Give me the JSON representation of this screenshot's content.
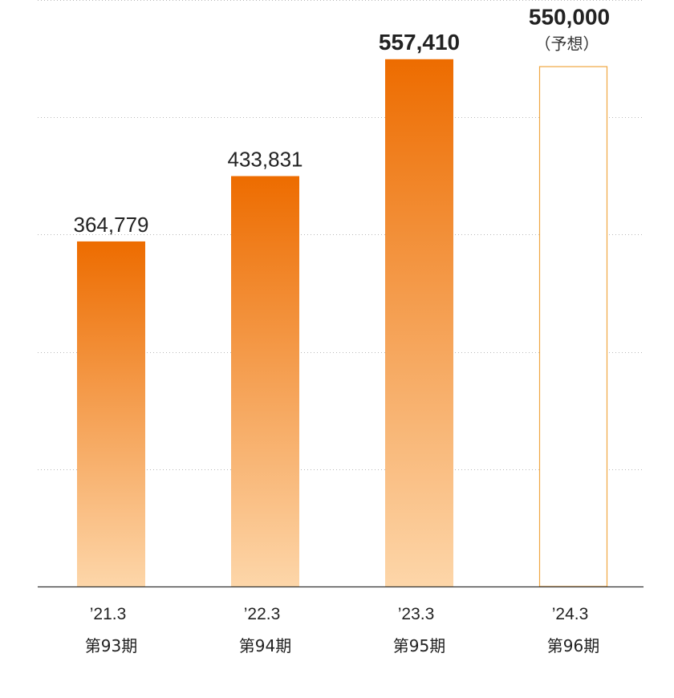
{
  "chart_data": {
    "type": "bar",
    "categories": [
      "’21.3",
      "’22.3",
      "’23.3",
      "’24.3"
    ],
    "sub_categories": [
      "第93期",
      "第94期",
      "第95期",
      "第96期"
    ],
    "values": [
      364779,
      433831,
      557410,
      550000
    ],
    "value_labels": [
      "364,779",
      "433,831",
      "557,410",
      "550,000"
    ],
    "forecast": [
      false,
      false,
      false,
      true
    ],
    "highlight": [
      false,
      false,
      true,
      true
    ],
    "forecast_note": "（予想）",
    "ylim": [
      0,
      620000
    ],
    "grid_step": 124000,
    "grid": true,
    "title": "",
    "xlabel": "",
    "ylabel": "",
    "colors": {
      "bar_top": "#ed6c00",
      "bar_bottom": "#fdd6a9",
      "forecast_border": "#f0a640",
      "grid": "#b8b8b8",
      "axis": "#333333"
    }
  }
}
